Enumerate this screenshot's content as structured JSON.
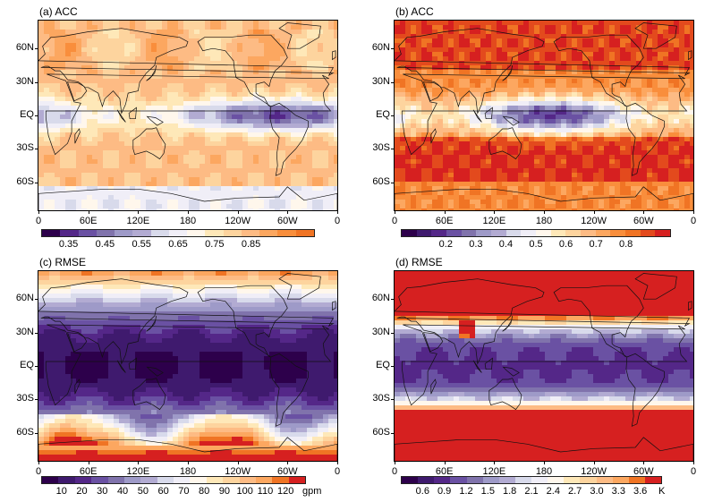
{
  "panels": [
    {
      "id": "a",
      "title": "(a)  ACC",
      "scheme": "acc",
      "colorbar": {
        "labels": [
          "0.35",
          "0.45",
          "0.55",
          "0.65",
          "0.75",
          "0.85"
        ],
        "unit": "",
        "colors": [
          "#2d004b",
          "#542788",
          "#6a51a3",
          "#8073ac",
          "#9e9ac8",
          "#b2abd2",
          "#d8daeb",
          "#f0eef7",
          "#fff7ec",
          "#fee8b8",
          "#fdd49e",
          "#fdbb84",
          "#fca760",
          "#f98e3c",
          "#f07424"
        ]
      }
    },
    {
      "id": "b",
      "title": "(b)  ACC",
      "scheme": "acc2",
      "colorbar": {
        "labels": [
          "0.2",
          "0.3",
          "0.4",
          "0.5",
          "0.6",
          "0.7",
          "0.8"
        ],
        "unit": "",
        "colors": [
          "#2d004b",
          "#3f1a6e",
          "#542788",
          "#6a51a3",
          "#8073ac",
          "#9e9ac8",
          "#b2abd2",
          "#d8daeb",
          "#f0eef7",
          "#fff7ec",
          "#fee8b8",
          "#fdd49e",
          "#fdbb84",
          "#fca760",
          "#f98e3c",
          "#f07424",
          "#e34a1d",
          "#d62020"
        ]
      }
    },
    {
      "id": "c",
      "title": "(c)  RMSE",
      "scheme": "rmse",
      "colorbar": {
        "labels": [
          "10",
          "20",
          "30",
          "40",
          "50",
          "60",
          "70",
          "80",
          "90",
          "100",
          "110",
          "120"
        ],
        "unit": "gpm",
        "colors": [
          "#2d004b",
          "#3f1a6e",
          "#542788",
          "#6a51a3",
          "#8073ac",
          "#9e9ac8",
          "#b2abd2",
          "#d8daeb",
          "#f0eef7",
          "#fff7ec",
          "#fee8b8",
          "#fdd49e",
          "#fdbb84",
          "#fca760",
          "#f07424",
          "#d62020"
        ]
      }
    },
    {
      "id": "d",
      "title": "(d)  RMSE",
      "scheme": "rmse2",
      "colorbar": {
        "labels": [
          "0.6",
          "0.9",
          "1.2",
          "1.5",
          "1.8",
          "2.1",
          "2.4",
          "2.7",
          "3.0",
          "3.3",
          "3.6"
        ],
        "unit": "K",
        "colors": [
          "#2d004b",
          "#3f1a6e",
          "#542788",
          "#6a51a3",
          "#8073ac",
          "#9e9ac8",
          "#b2abd2",
          "#d8daeb",
          "#f0eef7",
          "#fff7ec",
          "#fee8b8",
          "#fdd49e",
          "#fdbb84",
          "#fca760",
          "#f07424",
          "#d62020"
        ]
      }
    }
  ],
  "axes": {
    "lat_labels": [
      "60N",
      "30N",
      "EQ",
      "30S",
      "60S"
    ],
    "lon_labels": [
      "0",
      "60E",
      "120E",
      "180",
      "120W",
      "60W",
      "0"
    ]
  }
}
